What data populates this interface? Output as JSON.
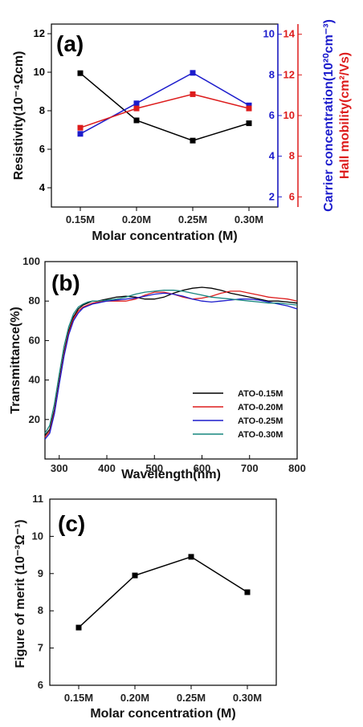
{
  "chart_data": [
    {
      "type": "line",
      "panel_label": "(a)",
      "categories": [
        "0.15M",
        "0.20M",
        "0.25M",
        "0.30M"
      ],
      "xlabel": "Molar concentration (M)",
      "series": [
        {
          "axis": "left",
          "color": "#000000",
          "values": [
            9.95,
            7.5,
            6.45,
            7.35
          ]
        },
        {
          "axis": "right_blue",
          "color": "#1c1ccc",
          "values": [
            5.1,
            6.6,
            8.1,
            6.5
          ]
        },
        {
          "axis": "right_red",
          "color": "#dd1c1c",
          "values": [
            9.4,
            10.35,
            11.05,
            10.35
          ]
        }
      ],
      "axes": {
        "left": {
          "label": "Resistivity(10⁻⁴Ωcm)",
          "ylim": [
            3,
            12.5
          ],
          "ticks": [
            "4",
            "6",
            "8",
            "10",
            "12"
          ],
          "color": "#000000"
        },
        "right_blue": {
          "label": "Carrier concentration(10²⁰cm⁻³)",
          "ylim": [
            1.5,
            10.5
          ],
          "ticks": [
            "2",
            "4",
            "6",
            "8",
            "10"
          ],
          "color": "#1c1ccc"
        },
        "right_red": {
          "label": "Hall mobility(cm²/Vs)",
          "ylim": [
            5.5,
            14.5
          ],
          "ticks": [
            "6",
            "8",
            "10",
            "12",
            "14"
          ],
          "color": "#dd1c1c"
        }
      }
    },
    {
      "type": "line",
      "panel_label": "(b)",
      "xlabel": "Wavelength(nm)",
      "ylabel": "Transmittance(%)",
      "xlim": [
        270,
        800
      ],
      "ylim": [
        0,
        100
      ],
      "xticks": [
        "300",
        "400",
        "500",
        "600",
        "700",
        "800"
      ],
      "yticks": [
        "20",
        "40",
        "60",
        "80",
        "100"
      ],
      "legend_position": "bottom-right",
      "series": [
        {
          "name": "ATO-0.15M",
          "color": "#000000",
          "x": [
            270,
            280,
            290,
            300,
            310,
            320,
            330,
            340,
            350,
            360,
            370,
            380,
            400,
            420,
            440,
            460,
            480,
            500,
            520,
            540,
            560,
            580,
            600,
            620,
            640,
            660,
            680,
            700,
            720,
            740,
            760,
            780,
            800
          ],
          "y": [
            12,
            15,
            25,
            40,
            54,
            65,
            72,
            76,
            78,
            79,
            80,
            80,
            81,
            82,
            82.5,
            82,
            81,
            81,
            82,
            84,
            85.5,
            86.5,
            87,
            86.5,
            85.5,
            84,
            83,
            82,
            81,
            80,
            80,
            79.5,
            79
          ]
        },
        {
          "name": "ATO-0.20M",
          "color": "#dd1c1c",
          "x": [
            270,
            280,
            290,
            300,
            310,
            320,
            330,
            340,
            350,
            360,
            370,
            380,
            400,
            420,
            440,
            460,
            480,
            500,
            520,
            540,
            560,
            580,
            600,
            620,
            640,
            660,
            680,
            700,
            720,
            740,
            760,
            780,
            800
          ],
          "y": [
            11,
            14,
            24,
            39,
            53,
            64,
            71,
            75,
            77,
            78,
            79,
            79.5,
            80,
            80,
            80,
            81,
            83,
            84.5,
            84.5,
            83.5,
            82,
            81,
            81.5,
            82.5,
            84,
            85,
            85,
            84,
            83,
            82,
            81.5,
            81,
            80
          ]
        },
        {
          "name": "ATO-0.25M",
          "color": "#1c1ccc",
          "x": [
            270,
            280,
            290,
            300,
            310,
            320,
            330,
            340,
            350,
            360,
            370,
            380,
            400,
            420,
            440,
            460,
            480,
            500,
            520,
            540,
            560,
            580,
            600,
            620,
            640,
            660,
            680,
            700,
            720,
            740,
            760,
            780,
            800
          ],
          "y": [
            10,
            13,
            23,
            38,
            52,
            63,
            70,
            74,
            76.5,
            77.5,
            78.5,
            79,
            80,
            80.5,
            81,
            81.5,
            82.5,
            83.5,
            84,
            83.5,
            82.5,
            81,
            80,
            79.5,
            80,
            80.5,
            81,
            81,
            80.5,
            79.5,
            78.5,
            77.5,
            76
          ]
        },
        {
          "name": "ATO-0.30M",
          "color": "#17857f",
          "x": [
            270,
            280,
            290,
            300,
            310,
            320,
            330,
            340,
            350,
            360,
            370,
            380,
            400,
            420,
            440,
            460,
            480,
            500,
            520,
            540,
            560,
            580,
            600,
            620,
            640,
            660,
            680,
            700,
            720,
            740,
            760,
            780,
            800
          ],
          "y": [
            13,
            17,
            28,
            43,
            57,
            67,
            73.5,
            77,
            78.5,
            79.5,
            80,
            80,
            80.5,
            81,
            82,
            83.5,
            84.5,
            85,
            85.5,
            85.5,
            85,
            84,
            83,
            82,
            81.5,
            81,
            80.5,
            80,
            79.5,
            79,
            79,
            78.5,
            78
          ]
        }
      ]
    },
    {
      "type": "line",
      "panel_label": "(c)",
      "categories": [
        "0.15M",
        "0.20M",
        "0.25M",
        "0.30M"
      ],
      "values": [
        7.55,
        8.95,
        9.45,
        8.5
      ],
      "xlabel": "Molar concentration (M)",
      "ylabel": "Figure of merit (10⁻³Ω⁻¹)",
      "ylim": [
        6,
        11
      ],
      "yticks": [
        "6",
        "7",
        "8",
        "9",
        "10",
        "11"
      ],
      "color": "#000000"
    }
  ]
}
